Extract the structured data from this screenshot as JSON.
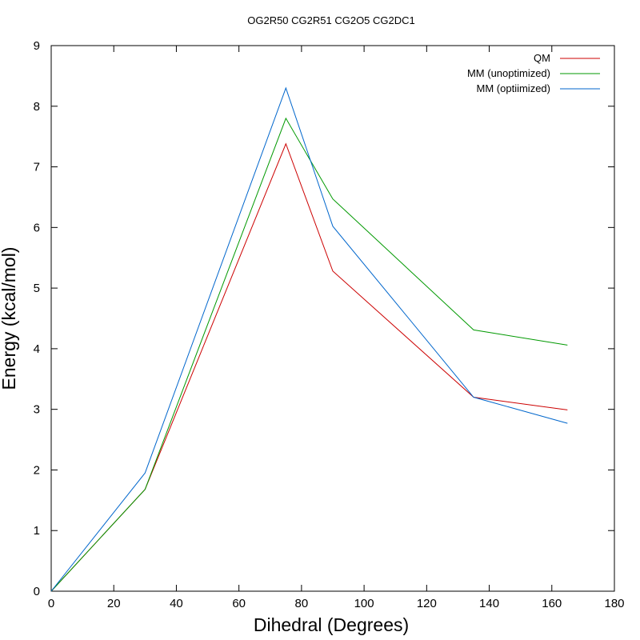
{
  "chart_data": {
    "type": "line",
    "title": "OG2R50 CG2R51 CG2O5 CG2DC1",
    "xlabel": "Dihedral (Degrees)",
    "ylabel": "Energy (kcal/mol)",
    "xlim": [
      0,
      180
    ],
    "ylim": [
      0,
      9
    ],
    "xticks": [
      0,
      20,
      40,
      60,
      80,
      100,
      120,
      140,
      160,
      180
    ],
    "yticks": [
      0,
      1,
      2,
      3,
      4,
      5,
      6,
      7,
      8,
      9
    ],
    "grid": false,
    "legend_position": "top-right",
    "x": [
      0,
      30,
      75,
      90,
      135,
      165
    ],
    "series": [
      {
        "name": "QM",
        "color": "#cc0000",
        "values": [
          0,
          1.68,
          7.38,
          5.28,
          3.2,
          2.99
        ]
      },
      {
        "name": "MM (unoptimized)",
        "color": "#009900",
        "values": [
          0,
          1.68,
          7.8,
          6.47,
          4.31,
          4.06
        ]
      },
      {
        "name": "MM (optiimized)",
        "color": "#0066cc",
        "values": [
          0,
          1.95,
          8.3,
          6.02,
          3.2,
          2.77
        ]
      }
    ]
  }
}
